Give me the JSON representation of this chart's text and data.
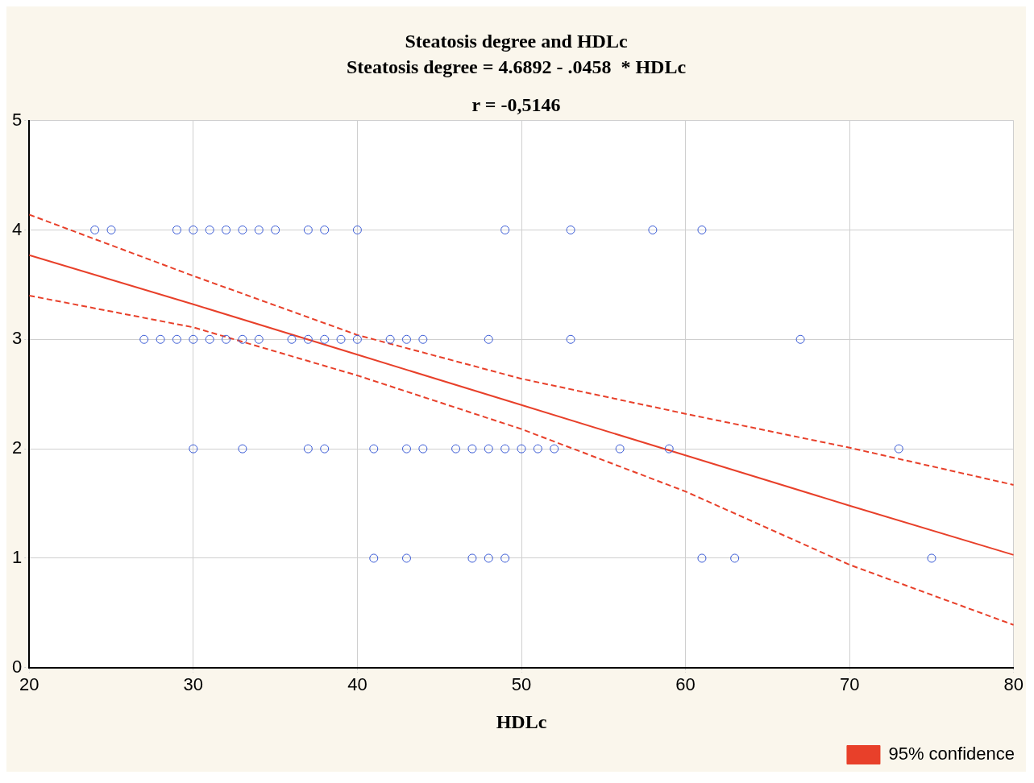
{
  "chart_data": {
    "type": "scatter",
    "title": "Steatosis degree and HDLc",
    "subtitle": "Steatosis degree = 4.6892 - .0458  * HDLc",
    "annotations": [
      "r = -0,5146"
    ],
    "xlabel": "HDLc",
    "xlim": [
      20,
      80
    ],
    "xticks": [
      20,
      30,
      40,
      50,
      60,
      70,
      80
    ],
    "ylim": [
      0,
      5
    ],
    "yticks": [
      0,
      1,
      2,
      3,
      4,
      5
    ],
    "grid": true,
    "marker": "circle",
    "legend": "bottom right",
    "series": [
      {
        "color": "#3a5bd6",
        "x": [
          24,
          25,
          29,
          30,
          31,
          32,
          33,
          34,
          35,
          37,
          38,
          40,
          49,
          53,
          58,
          61,
          27,
          28,
          29,
          30,
          31,
          32,
          33,
          34,
          36,
          37,
          38,
          39,
          40,
          42,
          43,
          44,
          48,
          53,
          67,
          30,
          33,
          37,
          38,
          41,
          43,
          44,
          46,
          47,
          48,
          49,
          50,
          51,
          52,
          56,
          59,
          73,
          41,
          43,
          47,
          48,
          49,
          61,
          63,
          75
        ],
        "values": [
          4,
          4,
          4,
          4,
          4,
          4,
          4,
          4,
          4,
          4,
          4,
          4,
          4,
          4,
          4,
          4,
          3,
          3,
          3,
          3,
          3,
          3,
          3,
          3,
          3,
          3,
          3,
          3,
          3,
          3,
          3,
          3,
          3,
          3,
          3,
          2,
          2,
          2,
          2,
          2,
          2,
          2,
          2,
          2,
          2,
          2,
          2,
          2,
          2,
          2,
          2,
          2,
          1,
          1,
          1,
          1,
          1,
          1,
          1,
          1
        ]
      },
      {
        "type": "line",
        "name": "95% confidence",
        "color": "#e8402a",
        "line_style": "solid",
        "marker": "none",
        "x": [
          20,
          30,
          40,
          50,
          60,
          70,
          80
        ],
        "values": [
          3.77,
          3.32,
          2.86,
          2.4,
          1.94,
          1.48,
          1.03
        ]
      },
      {
        "type": "line",
        "color": "#e8402a",
        "line_style": "dashed",
        "marker": "none",
        "x": [
          20,
          30,
          40,
          50,
          60,
          70,
          80
        ],
        "values": [
          3.4,
          3.11,
          2.67,
          2.18,
          1.61,
          0.94,
          0.39
        ]
      },
      {
        "type": "line",
        "color": "#e8402a",
        "line_style": "dashed",
        "marker": "none",
        "x": [
          20,
          30,
          40,
          50,
          60,
          70,
          80
        ],
        "values": [
          4.14,
          3.58,
          3.04,
          2.64,
          2.32,
          2.01,
          1.67
        ]
      }
    ]
  }
}
